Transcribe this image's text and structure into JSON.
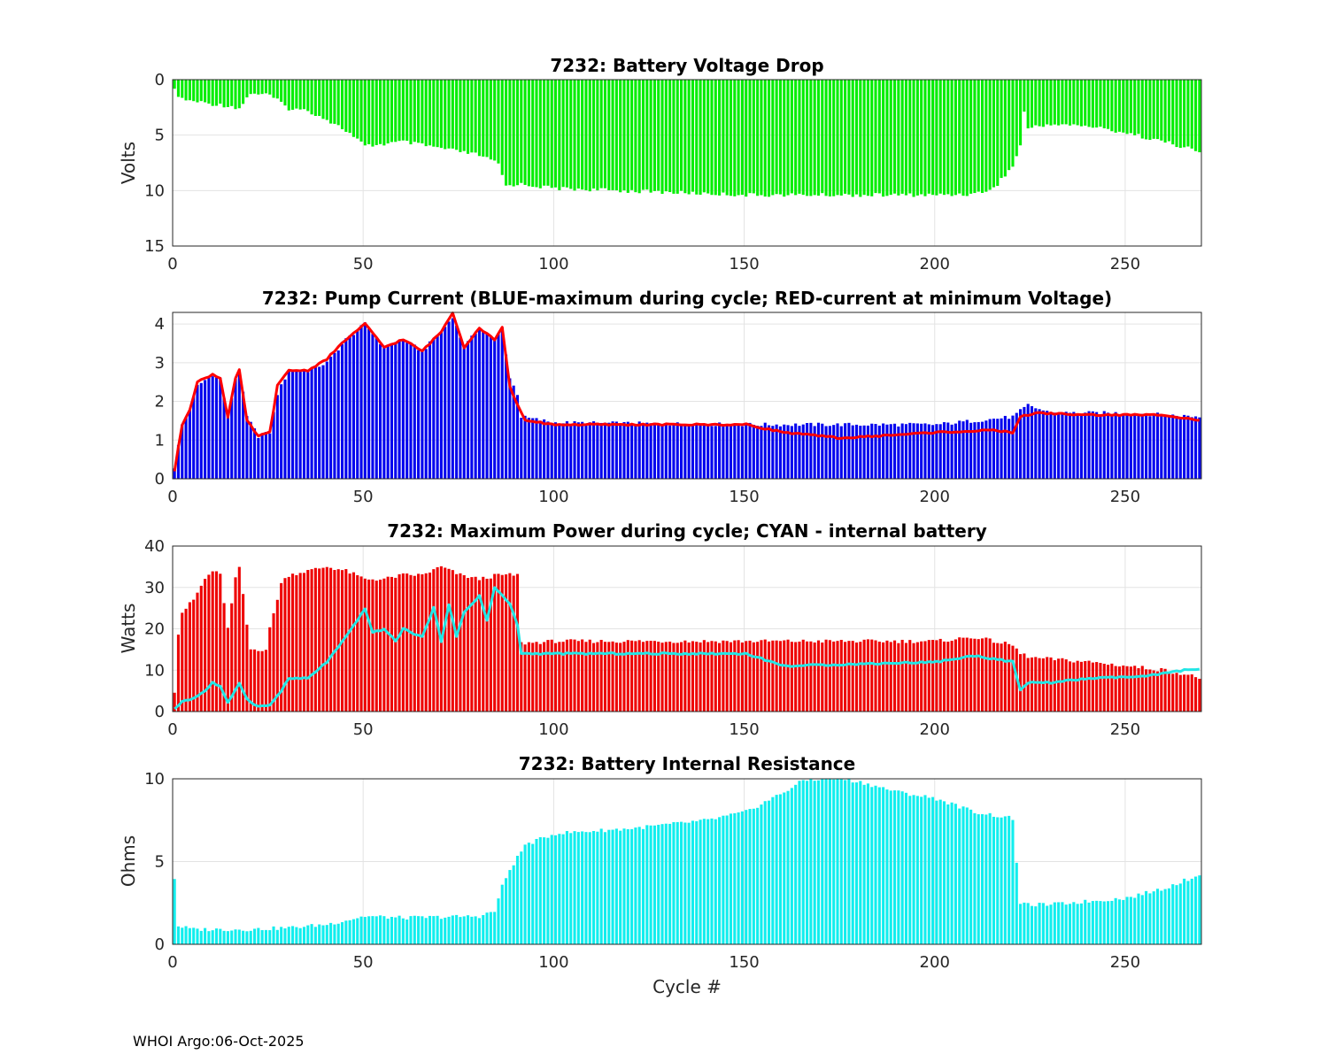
{
  "footer": "WHOI Argo:06-Oct-2025",
  "colors": {
    "voltage": "#00ee00",
    "pump_max": "#0000ee",
    "pump_line": "#ff0000",
    "power": "#ee0000",
    "power_line": "#22e6e6",
    "resistance": "#11eeee"
  },
  "chart_data": [
    {
      "type": "bar",
      "title": "7232: Battery Voltage Drop",
      "xlabel": "",
      "ylabel": "Volts",
      "xlim": [
        0,
        270
      ],
      "ylim": [
        0,
        15
      ],
      "y_reversed": true,
      "xticks": [
        "0",
        "50",
        "100",
        "150",
        "200",
        "250"
      ],
      "yticks": [
        "0",
        "5",
        "10",
        "15"
      ],
      "series": [
        {
          "name": "voltage drop",
          "anchors": [
            [
              0,
              1
            ],
            [
              2,
              1.8
            ],
            [
              10,
              2.2
            ],
            [
              15,
              2.4
            ],
            [
              17,
              2.6
            ],
            [
              20,
              1.2
            ],
            [
              25,
              1.4
            ],
            [
              30,
              2.6
            ],
            [
              35,
              2.8
            ],
            [
              40,
              3.6
            ],
            [
              45,
              4.6
            ],
            [
              50,
              6.0
            ],
            [
              55,
              5.8
            ],
            [
              60,
              5.6
            ],
            [
              70,
              6.2
            ],
            [
              80,
              6.8
            ],
            [
              85,
              7.6
            ],
            [
              87,
              9.6
            ],
            [
              90,
              9.4
            ],
            [
              100,
              9.8
            ],
            [
              150,
              10.4
            ],
            [
              200,
              10.4
            ],
            [
              210,
              10.3
            ],
            [
              215,
              9.8
            ],
            [
              220,
              7.8
            ],
            [
              222,
              6.0
            ],
            [
              223,
              2.8
            ],
            [
              224,
              4.4
            ],
            [
              230,
              4.0
            ],
            [
              240,
              4.2
            ],
            [
              250,
              4.8
            ],
            [
              262,
              5.8
            ],
            [
              270,
              6.6
            ]
          ]
        }
      ]
    },
    {
      "type": "bar",
      "title": "7232: Pump Current (BLUE-maximum during cycle; RED-current at minimum Voltage)",
      "xlabel": "",
      "ylabel": "",
      "xlim": [
        0,
        270
      ],
      "ylim": [
        0,
        4.3
      ],
      "xticks": [
        "0",
        "50",
        "100",
        "150",
        "200",
        "250"
      ],
      "yticks": [
        "0",
        "1",
        "2",
        "3",
        "4"
      ],
      "series": [
        {
          "name": "maximum during cycle",
          "anchors": [
            [
              0,
              0.3
            ],
            [
              2,
              1.4
            ],
            [
              4,
              1.8
            ],
            [
              6,
              2.4
            ],
            [
              10,
              2.7
            ],
            [
              12,
              2.6
            ],
            [
              14,
              1.6
            ],
            [
              16,
              2.6
            ],
            [
              17,
              2.8
            ],
            [
              19,
              1.6
            ],
            [
              22,
              1.1
            ],
            [
              25,
              1.2
            ],
            [
              27,
              2.2
            ],
            [
              30,
              2.8
            ],
            [
              35,
              2.8
            ],
            [
              40,
              3.0
            ],
            [
              45,
              3.6
            ],
            [
              50,
              4.0
            ],
            [
              55,
              3.4
            ],
            [
              60,
              3.6
            ],
            [
              65,
              3.3
            ],
            [
              70,
              3.8
            ],
            [
              73,
              4.2
            ],
            [
              76,
              3.4
            ],
            [
              80,
              3.9
            ],
            [
              84,
              3.6
            ],
            [
              86,
              3.9
            ],
            [
              88,
              2.6
            ],
            [
              90,
              2.2
            ],
            [
              91,
              1.6
            ],
            [
              100,
              1.45
            ],
            [
              150,
              1.4
            ],
            [
              200,
              1.4
            ],
            [
              210,
              1.5
            ],
            [
              220,
              1.6
            ],
            [
              224,
              1.9
            ],
            [
              230,
              1.7
            ],
            [
              250,
              1.7
            ],
            [
              270,
              1.6
            ]
          ]
        },
        {
          "name": "current at minimum voltage",
          "anchors": [
            [
              0,
              0.2
            ],
            [
              2,
              1.4
            ],
            [
              4,
              1.8
            ],
            [
              6,
              2.5
            ],
            [
              10,
              2.7
            ],
            [
              12,
              2.6
            ],
            [
              14,
              1.6
            ],
            [
              16,
              2.6
            ],
            [
              17,
              2.8
            ],
            [
              19,
              1.5
            ],
            [
              22,
              1.1
            ],
            [
              25,
              1.2
            ],
            [
              27,
              2.4
            ],
            [
              30,
              2.8
            ],
            [
              35,
              2.8
            ],
            [
              40,
              3.1
            ],
            [
              45,
              3.6
            ],
            [
              50,
              4.0
            ],
            [
              55,
              3.4
            ],
            [
              60,
              3.6
            ],
            [
              65,
              3.3
            ],
            [
              70,
              3.8
            ],
            [
              73,
              4.3
            ],
            [
              76,
              3.4
            ],
            [
              80,
              3.9
            ],
            [
              84,
              3.6
            ],
            [
              86,
              3.9
            ],
            [
              88,
              2.4
            ],
            [
              90,
              1.9
            ],
            [
              92,
              1.5
            ],
            [
              100,
              1.4
            ],
            [
              120,
              1.4
            ],
            [
              150,
              1.4
            ],
            [
              160,
              1.2
            ],
            [
              175,
              1.05
            ],
            [
              200,
              1.2
            ],
            [
              215,
              1.25
            ],
            [
              220,
              1.2
            ],
            [
              222,
              1.6
            ],
            [
              226,
              1.7
            ],
            [
              240,
              1.65
            ],
            [
              260,
              1.65
            ],
            [
              270,
              1.5
            ]
          ]
        }
      ]
    },
    {
      "type": "bar",
      "title": "7232: Maximum Power during cycle; CYAN - internal battery",
      "xlabel": "",
      "ylabel": "Watts",
      "xlim": [
        0,
        270
      ],
      "ylim": [
        0,
        40
      ],
      "xticks": [
        "0",
        "50",
        "100",
        "150",
        "200",
        "250"
      ],
      "yticks": [
        "0",
        "10",
        "20",
        "30",
        "40"
      ],
      "series": [
        {
          "name": "maximum power",
          "anchors": [
            [
              0,
              5
            ],
            [
              1,
              19
            ],
            [
              2,
              24
            ],
            [
              5,
              27
            ],
            [
              8,
              32
            ],
            [
              10,
              34
            ],
            [
              12,
              33
            ],
            [
              14,
              20
            ],
            [
              16,
              32
            ],
            [
              17,
              35
            ],
            [
              19,
              21
            ],
            [
              20,
              15
            ],
            [
              24,
              15
            ],
            [
              25,
              20
            ],
            [
              28,
              31
            ],
            [
              30,
              33
            ],
            [
              35,
              34
            ],
            [
              40,
              35
            ],
            [
              45,
              34
            ],
            [
              50,
              32
            ],
            [
              55,
              32
            ],
            [
              60,
              33
            ],
            [
              65,
              33
            ],
            [
              70,
              35
            ],
            [
              75,
              33
            ],
            [
              80,
              32
            ],
            [
              85,
              33
            ],
            [
              90,
              33
            ],
            [
              91,
              16.5
            ],
            [
              100,
              17
            ],
            [
              150,
              17
            ],
            [
              200,
              17
            ],
            [
              210,
              18
            ],
            [
              220,
              16
            ],
            [
              222,
              14
            ],
            [
              225,
              13
            ],
            [
              240,
              12
            ],
            [
              250,
              11
            ],
            [
              260,
              10
            ],
            [
              270,
              8
            ]
          ]
        },
        {
          "name": "internal battery",
          "anchors": [
            [
              0,
              0.5
            ],
            [
              2,
              2.5
            ],
            [
              5,
              3.2
            ],
            [
              8,
              5
            ],
            [
              10,
              7
            ],
            [
              12,
              6
            ],
            [
              14,
              2
            ],
            [
              17,
              7
            ],
            [
              19,
              3
            ],
            [
              22,
              1.2
            ],
            [
              25,
              1.5
            ],
            [
              28,
              5
            ],
            [
              30,
              8
            ],
            [
              35,
              8
            ],
            [
              40,
              12
            ],
            [
              45,
              18
            ],
            [
              48,
              22
            ],
            [
              50,
              25
            ],
            [
              52,
              19
            ],
            [
              55,
              20
            ],
            [
              58,
              17
            ],
            [
              60,
              20
            ],
            [
              65,
              18
            ],
            [
              68,
              25
            ],
            [
              70,
              17
            ],
            [
              72,
              26
            ],
            [
              74,
              18
            ],
            [
              76,
              24
            ],
            [
              80,
              28
            ],
            [
              82,
              22
            ],
            [
              84,
              30
            ],
            [
              86,
              28
            ],
            [
              88,
              26
            ],
            [
              90,
              21
            ],
            [
              91,
              14
            ],
            [
              100,
              14
            ],
            [
              150,
              14
            ],
            [
              160,
              11
            ],
            [
              200,
              12
            ],
            [
              210,
              13.5
            ],
            [
              220,
              12
            ],
            [
              222,
              5
            ],
            [
              224,
              7
            ],
            [
              230,
              7
            ],
            [
              240,
              8
            ],
            [
              255,
              8.5
            ],
            [
              265,
              10
            ],
            [
              270,
              10.5
            ]
          ]
        }
      ]
    },
    {
      "type": "bar",
      "title": "7232: Battery Internal Resistance",
      "xlabel": "Cycle #",
      "ylabel": "Ohms",
      "xlim": [
        0,
        270
      ],
      "ylim": [
        0,
        10
      ],
      "xticks": [
        "0",
        "50",
        "100",
        "150",
        "200",
        "250"
      ],
      "yticks": [
        "0",
        "5",
        "10"
      ],
      "series": [
        {
          "name": "internal resistance",
          "anchors": [
            [
              0,
              4
            ],
            [
              1,
              1.1
            ],
            [
              5,
              0.9
            ],
            [
              20,
              0.9
            ],
            [
              30,
              1.0
            ],
            [
              40,
              1.2
            ],
            [
              50,
              1.7
            ],
            [
              60,
              1.6
            ],
            [
              80,
              1.7
            ],
            [
              84,
              2.0
            ],
            [
              86,
              3.5
            ],
            [
              88,
              4.5
            ],
            [
              92,
              6.0
            ],
            [
              100,
              6.7
            ],
            [
              120,
              7.0
            ],
            [
              140,
              7.5
            ],
            [
              150,
              8.0
            ],
            [
              160,
              9.2
            ],
            [
              165,
              9.9
            ],
            [
              170,
              10
            ],
            [
              175,
              10
            ],
            [
              180,
              9.8
            ],
            [
              190,
              9.2
            ],
            [
              200,
              8.8
            ],
            [
              210,
              8.0
            ],
            [
              220,
              7.6
            ],
            [
              221,
              5.0
            ],
            [
              222,
              2.4
            ],
            [
              230,
              2.4
            ],
            [
              240,
              2.6
            ],
            [
              250,
              2.8
            ],
            [
              260,
              3.4
            ],
            [
              270,
              4.3
            ]
          ]
        }
      ]
    }
  ]
}
